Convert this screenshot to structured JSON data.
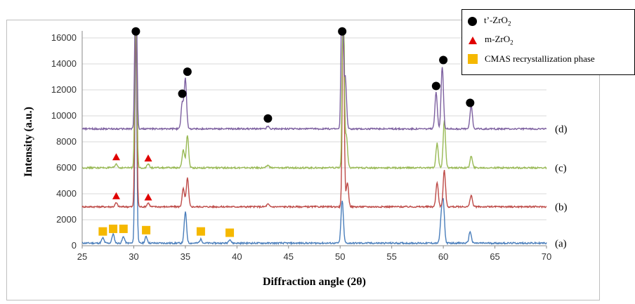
{
  "chart_data": {
    "type": "line",
    "xlabel": "Diffraction angle (2θ)",
    "ylabel": "Intensity (a.u.)",
    "xlim": [
      25,
      70
    ],
    "ylim": [
      0,
      16000
    ],
    "x_ticks": [
      "25",
      "30",
      "35",
      "40",
      "45",
      "50",
      "55",
      "60",
      "65",
      "70"
    ],
    "y_ticks": [
      "0",
      "2000",
      "4000",
      "6000",
      "8000",
      "10000",
      "12000",
      "14000",
      "16000"
    ],
    "grid": "horizontal",
    "legend_position": "top-right",
    "series": [
      {
        "name": "(a)",
        "color": "#4a7ebb",
        "baseline": 200,
        "peaks": [
          [
            27.0,
            400
          ],
          [
            28.0,
            700
          ],
          [
            29.0,
            500
          ],
          [
            30.2,
            16000
          ],
          [
            31.2,
            500
          ],
          [
            35.0,
            2400
          ],
          [
            36.5,
            300
          ],
          [
            39.3,
            300
          ],
          [
            50.2,
            3300
          ],
          [
            59.8,
            1800
          ],
          [
            60.0,
            3000
          ],
          [
            62.6,
            900
          ]
        ]
      },
      {
        "name": "(b)",
        "color": "#be4b48",
        "baseline": 3000,
        "peaks": [
          [
            28.3,
            300
          ],
          [
            30.2,
            16000
          ],
          [
            31.4,
            300
          ],
          [
            34.8,
            1400
          ],
          [
            35.2,
            2200
          ],
          [
            43.0,
            200
          ],
          [
            50.3,
            16000
          ],
          [
            50.7,
            1900
          ],
          [
            59.4,
            1900
          ],
          [
            60.1,
            2800
          ],
          [
            62.7,
            900
          ]
        ]
      },
      {
        "name": "(c)",
        "color": "#98b954",
        "baseline": 6000,
        "peaks": [
          [
            28.3,
            300
          ],
          [
            30.2,
            16000
          ],
          [
            31.4,
            300
          ],
          [
            34.8,
            1400
          ],
          [
            35.2,
            2500
          ],
          [
            43.0,
            200
          ],
          [
            50.3,
            16000
          ],
          [
            50.6,
            2500
          ],
          [
            59.4,
            1900
          ],
          [
            60.1,
            3600
          ],
          [
            62.7,
            900
          ]
        ]
      },
      {
        "name": "(d)",
        "color": "#7d60a0",
        "baseline": 9000,
        "peaks": [
          [
            30.2,
            16000
          ],
          [
            34.7,
            2000
          ],
          [
            35.0,
            3900
          ],
          [
            43.0,
            200
          ],
          [
            50.2,
            16000
          ],
          [
            50.5,
            4000
          ],
          [
            59.3,
            2800
          ],
          [
            59.9,
            4800
          ],
          [
            62.7,
            1800
          ]
        ]
      }
    ],
    "markers": [
      {
        "type": "t-ZrO2",
        "points": [
          [
            30.2,
            16500
          ],
          [
            35.2,
            13400
          ],
          [
            34.7,
            11700
          ],
          [
            43.0,
            9800
          ],
          [
            50.2,
            16500
          ],
          [
            59.3,
            12300
          ],
          [
            60.0,
            14300
          ],
          [
            62.6,
            11000
          ]
        ]
      },
      {
        "type": "m-ZrO2",
        "points": [
          [
            28.3,
            3800
          ],
          [
            31.4,
            3700
          ],
          [
            28.3,
            6800
          ],
          [
            31.4,
            6700
          ]
        ]
      },
      {
        "type": "CMAS",
        "points": [
          [
            27.0,
            1100
          ],
          [
            28.0,
            1300
          ],
          [
            29.0,
            1300
          ],
          [
            31.2,
            1200
          ],
          [
            36.5,
            1100
          ],
          [
            39.3,
            1000
          ]
        ]
      }
    ],
    "legend": [
      {
        "id": "t-ZrO2",
        "label": "t’-ZrO",
        "sub": "2",
        "shape": "circle",
        "color": "#000000"
      },
      {
        "id": "m-ZrO2",
        "label": "m-ZrO",
        "sub": "2",
        "shape": "triangle",
        "color": "#e00000"
      },
      {
        "id": "CMAS",
        "label": "CMAS recrystallization phase",
        "sub": "",
        "shape": "square",
        "color": "#f5b800"
      }
    ]
  }
}
